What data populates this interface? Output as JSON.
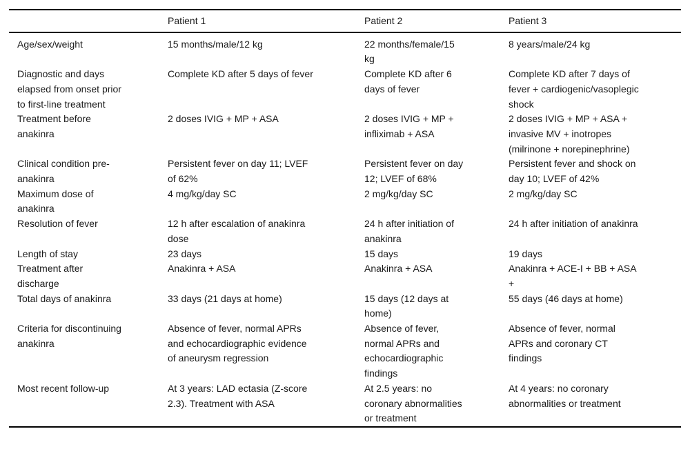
{
  "table": {
    "header": {
      "col0": "",
      "col1": "Patient 1",
      "col2": "Patient 2",
      "col3": "Patient 3"
    },
    "rows": [
      {
        "label": "Age/sex/weight",
        "p1": "15 months/male/12 kg",
        "p2": "22 months/female/15\nkg",
        "p3": "8 years/male/24 kg"
      },
      {
        "label": "Diagnostic and days\nelapsed from onset prior\nto first-line treatment",
        "p1": "Complete KD after 5 days of fever",
        "p2": "Complete KD after 6\ndays of fever",
        "p3": "Complete KD after 7 days of\nfever + cardiogenic/vasoplegic\nshock"
      },
      {
        "label": "Treatment before\nanakinra",
        "p1": "2 doses IVIG + MP + ASA",
        "p2": "2 doses IVIG + MP +\ninfliximab + ASA",
        "p3": "2 doses IVIG + MP + ASA +\ninvasive MV + inotropes\n(milrinone + norepinephrine)"
      },
      {
        "label": "Clinical condition pre-\nanakinra",
        "p1": "Persistent fever on day 11; LVEF\nof 62%",
        "p2": "Persistent fever on day\n12; LVEF of 68%",
        "p3": "Persistent fever and shock on\nday 10; LVEF of 42%"
      },
      {
        "label": "Maximum dose of\nanakinra",
        "p1": "4 mg/kg/day SC",
        "p2": "2 mg/kg/day SC",
        "p3": "2 mg/kg/day SC"
      },
      {
        "label": "Resolution of fever",
        "p1": "12 h after escalation of anakinra\ndose",
        "p2": "24 h after initiation of\nanakinra",
        "p3": "24 h after initiation of anakinra"
      },
      {
        "label": "Length of stay",
        "p1": "23 days",
        "p2": "15 days",
        "p3": "19 days"
      },
      {
        "label": "Treatment after\ndischarge",
        "p1": "Anakinra + ASA",
        "p2": "Anakinra + ASA",
        "p3": "Anakinra + ACE-I + BB + ASA\n+"
      },
      {
        "label": "Total days of anakinra",
        "p1": "33 days (21 days at home)",
        "p2": "15 days (12 days at\nhome)",
        "p3": "55 days (46 days at home)"
      },
      {
        "label": "Criteria for discontinuing\nanakinra",
        "p1": "Absence of fever, normal APRs\nand echocardiographic evidence\nof aneurysm regression",
        "p2": "Absence of fever,\nnormal APRs and\nechocardiographic\nfindings",
        "p3": "Absence of fever, normal\nAPRs and coronary CT\nfindings"
      },
      {
        "label": "Most recent follow-up",
        "p1": "At 3 years: LAD ectasia (Z-score\n2.3). Treatment with ASA",
        "p2": "At 2.5 years: no\ncoronary abnormalities\nor treatment",
        "p3": "At 4 years: no coronary\nabnormalities or treatment"
      }
    ]
  }
}
